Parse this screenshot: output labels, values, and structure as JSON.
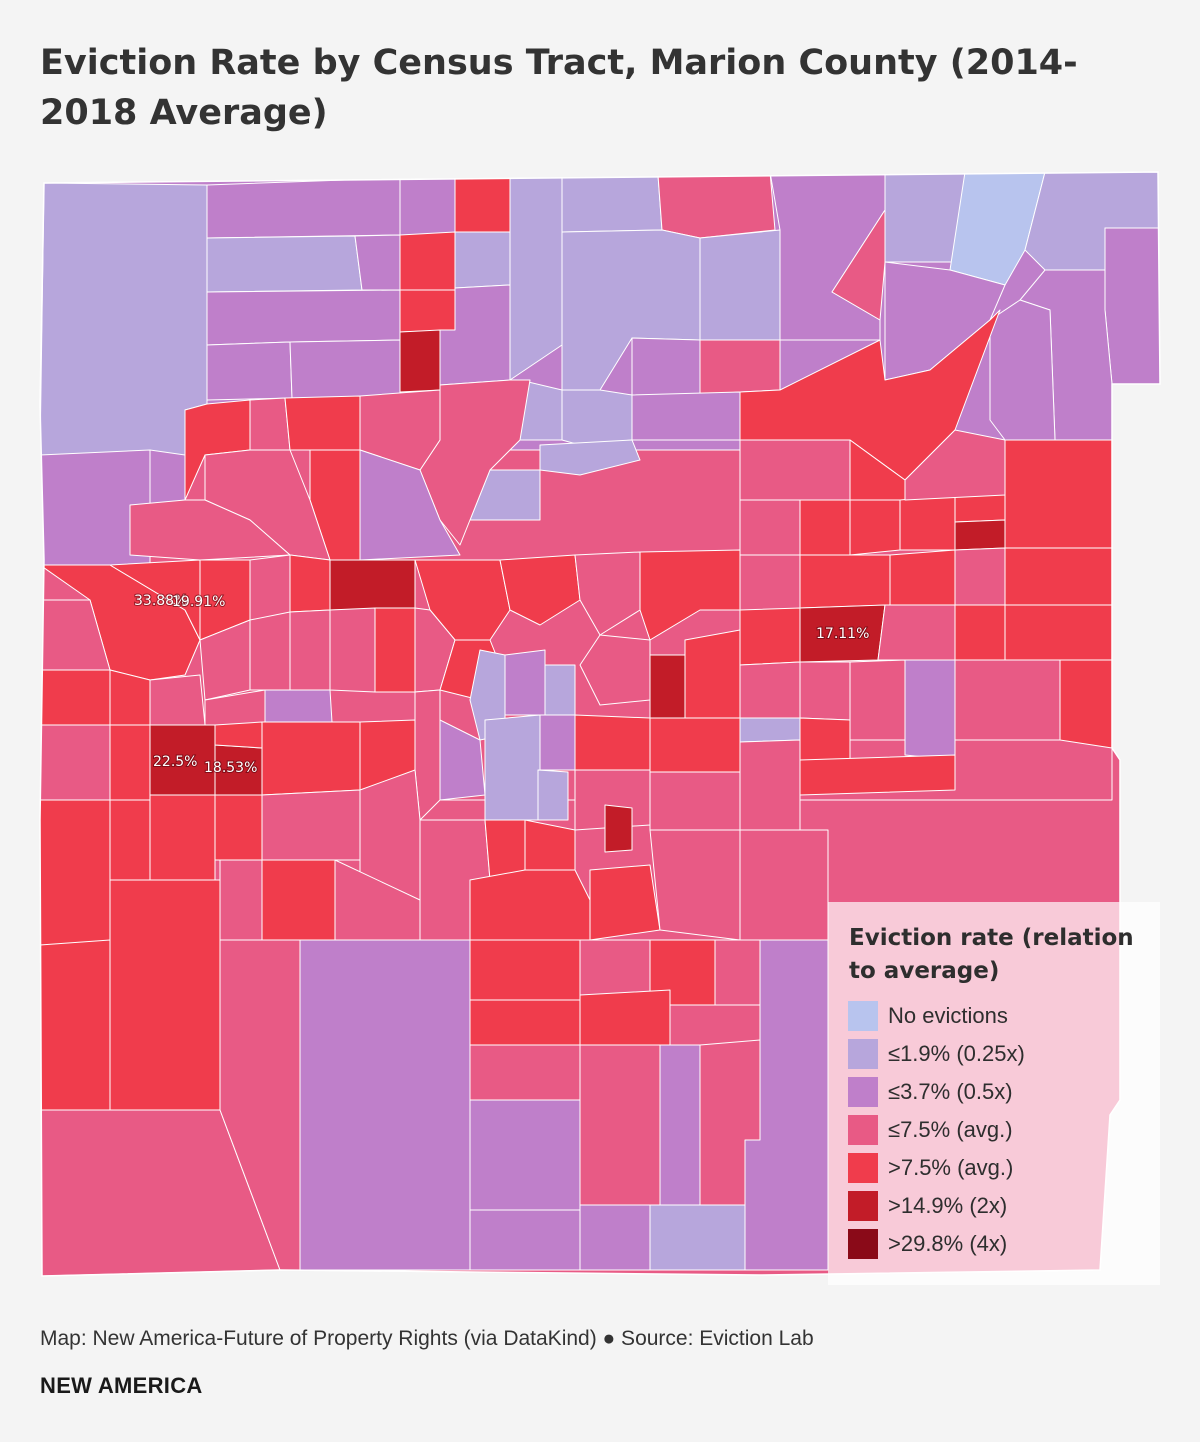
{
  "title": "Eviction Rate by Census Tract, Marion County (2014-2018 Average)",
  "colors": {
    "no_evictions": "#b8c4ee",
    "le_1_9": "#b7a6dc",
    "le_3_7": "#bf7fca",
    "le_7_5": "#e85a85",
    "gt_7_5": "#f03c4c",
    "gt_14_9": "#c21c28",
    "gt_29_8": "#8a0a18",
    "boundary": "#ffffff"
  },
  "legend": {
    "title": "Eviction rate (relation to average)",
    "items": [
      {
        "label": "No evictions",
        "color_key": "no_evictions"
      },
      {
        "label": "≤1.9% (0.25x)",
        "color_key": "le_1_9"
      },
      {
        "label": "≤3.7% (0.5x)",
        "color_key": "le_3_7"
      },
      {
        "label": "≤7.5% (avg.)",
        "color_key": "le_7_5"
      },
      {
        "label": ">7.5% (avg.)",
        "color_key": "gt_7_5"
      },
      {
        "label": ">14.9% (2x)",
        "color_key": "gt_14_9"
      },
      {
        "label": ">29.8% (4x)",
        "color_key": "gt_29_8"
      }
    ]
  },
  "tract_labels": [
    {
      "text": "33.88%"
    },
    {
      "text": "19.91%"
    },
    {
      "text": "17.11%"
    },
    {
      "text": "22.5%"
    },
    {
      "text": "18.53%"
    }
  ],
  "source": "Map: New America-Future of Property Rights (via DataKind) ● Source: Eviction Lab",
  "brand": "NEW AMERICA"
}
